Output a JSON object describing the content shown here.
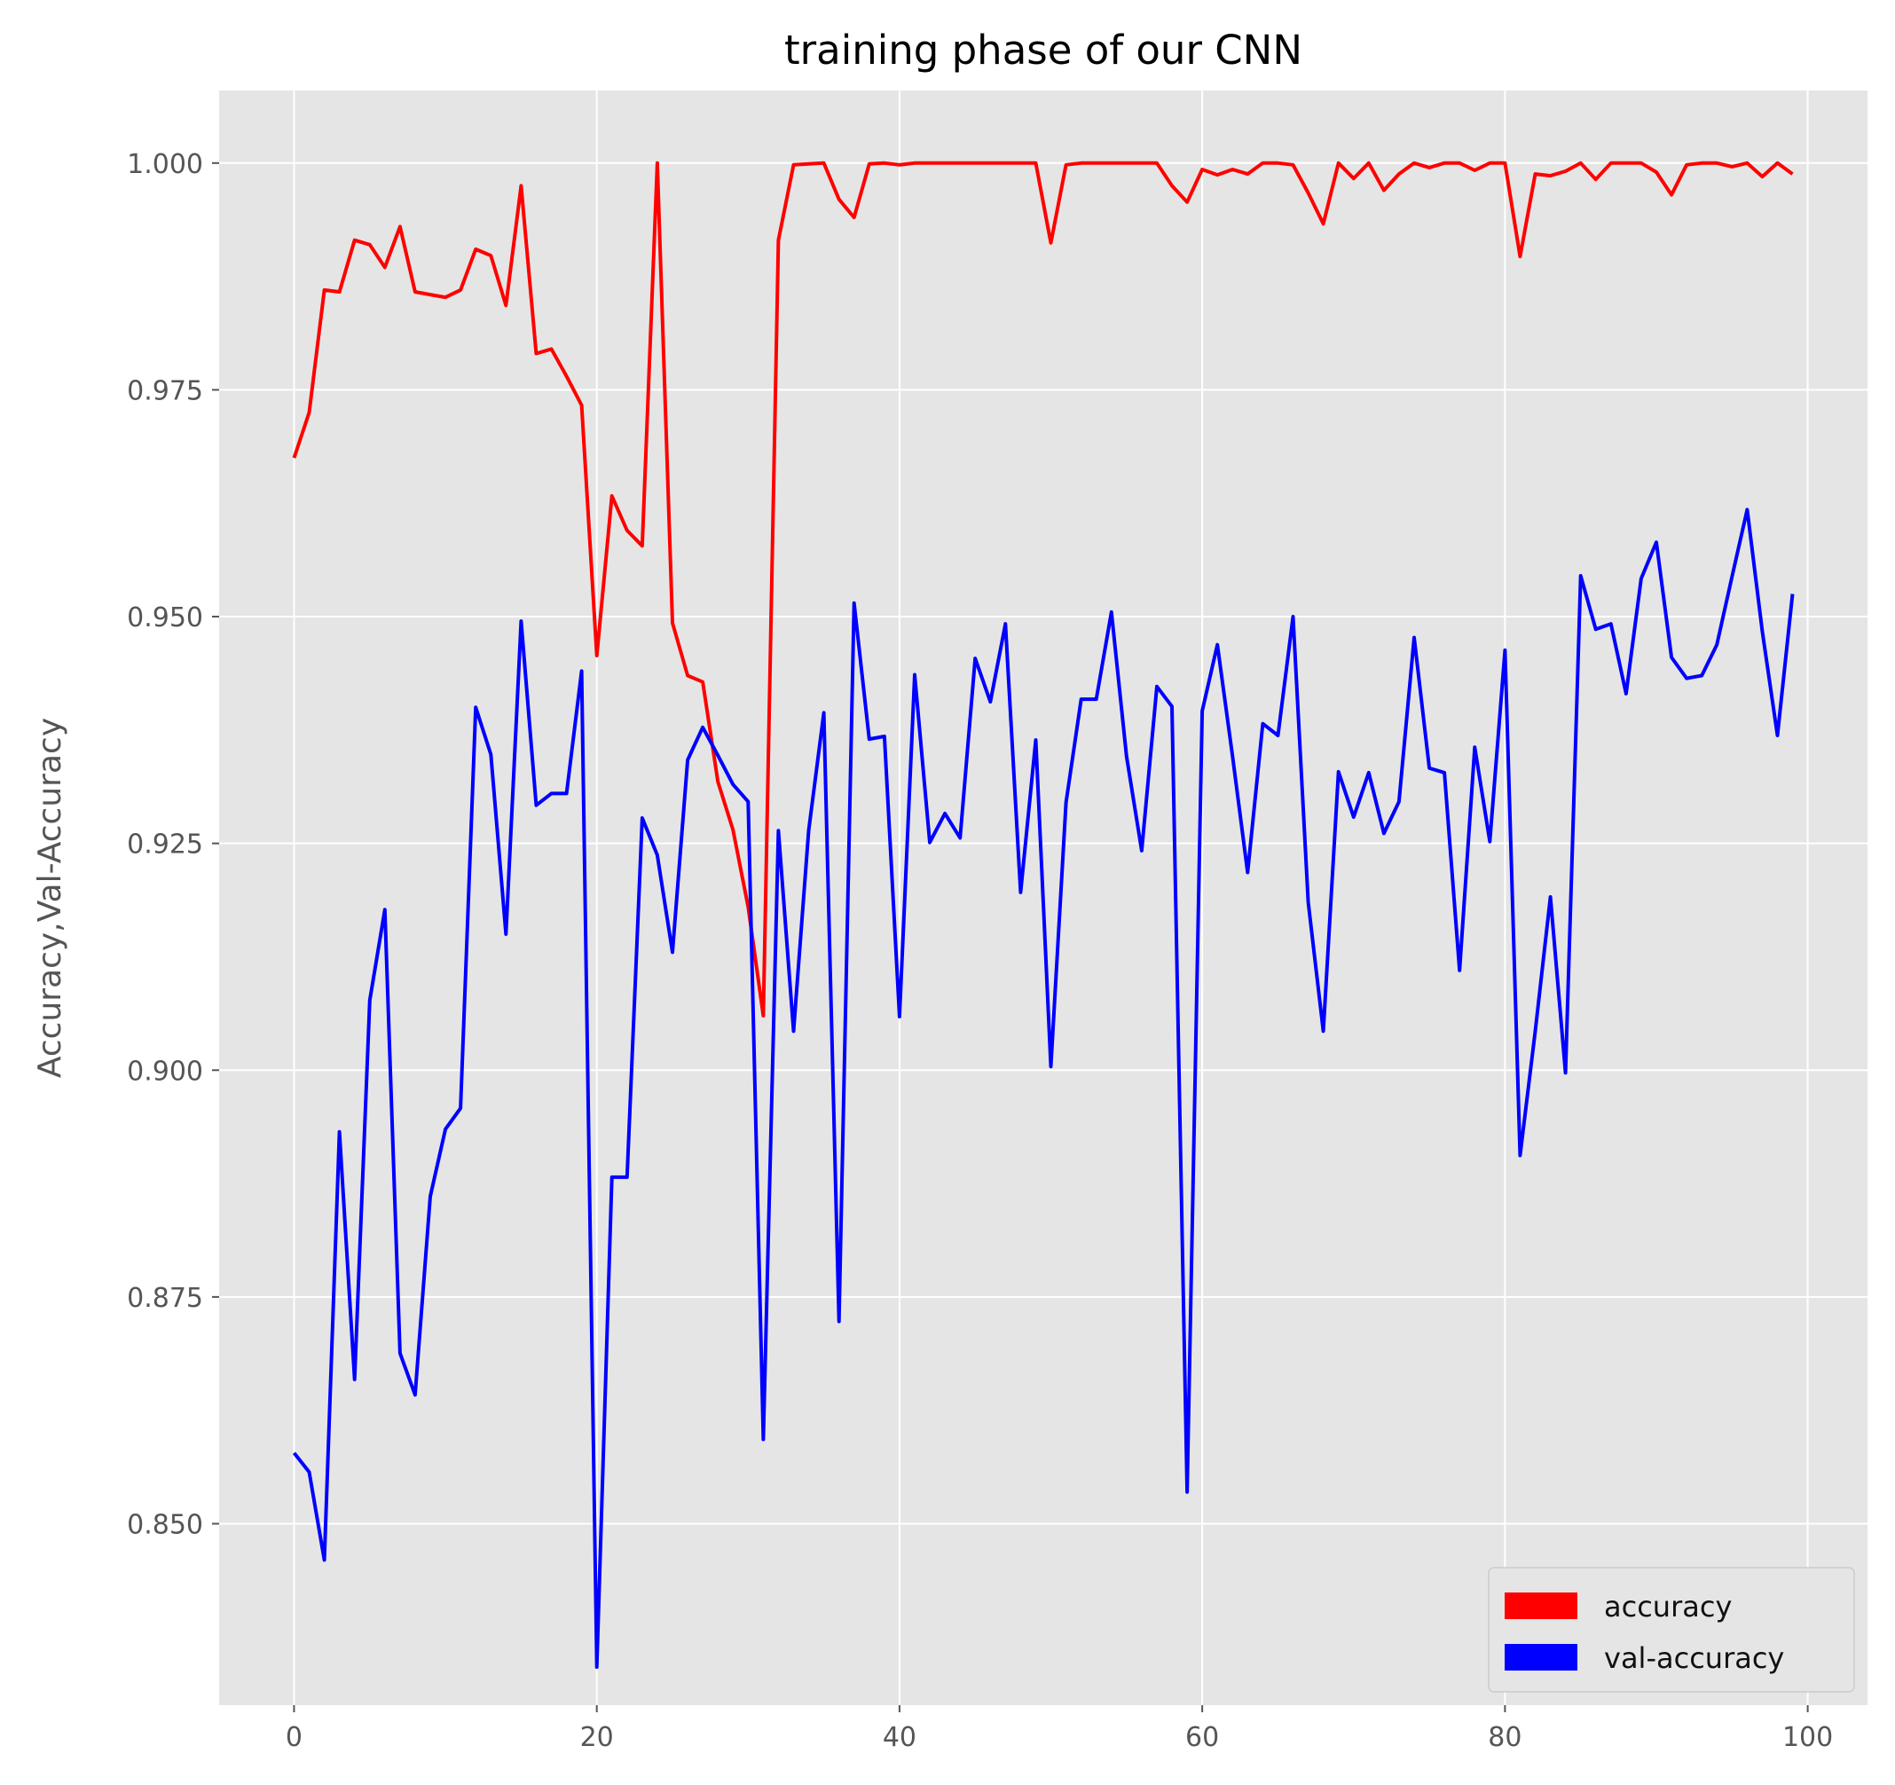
{
  "chart_data": {
    "type": "line",
    "title": "training phase of our CNN",
    "xlabel": "",
    "ylabel": "Accuracy,Val-Accuracy",
    "xlim": [
      -4.95,
      103.95
    ],
    "ylim": [
      0.83,
      1.008
    ],
    "x_ticks": [
      0,
      20,
      40,
      60,
      80,
      100
    ],
    "x_tick_labels": [
      "0",
      "20",
      "40",
      "60",
      "80",
      "100"
    ],
    "y_ticks": [
      0.85,
      0.875,
      0.9,
      0.925,
      0.95,
      0.975,
      1.0
    ],
    "y_tick_labels": [
      "0.850",
      "0.875",
      "0.900",
      "0.925",
      "0.950",
      "0.975",
      "1.000"
    ],
    "grid": true,
    "legend_position": "lower-right",
    "x": [
      0,
      1,
      2,
      3,
      4,
      5,
      6,
      7,
      8,
      9,
      10,
      11,
      12,
      13,
      14,
      15,
      16,
      17,
      18,
      19,
      20,
      21,
      22,
      23,
      24,
      25,
      26,
      27,
      28,
      29,
      30,
      31,
      32,
      33,
      34,
      35,
      36,
      37,
      38,
      39,
      40,
      41,
      42,
      43,
      44,
      45,
      46,
      47,
      48,
      49,
      50,
      51,
      52,
      53,
      54,
      55,
      56,
      57,
      58,
      59,
      60,
      61,
      62,
      63,
      64,
      65,
      66,
      67,
      68,
      69,
      70,
      71,
      72,
      73,
      74,
      75,
      76,
      77,
      78,
      79,
      80,
      81,
      82,
      83,
      84,
      85,
      86,
      87,
      88,
      89,
      90,
      91,
      92,
      93,
      94,
      95,
      96,
      97,
      98,
      99
    ],
    "series": [
      {
        "name": "accuracy",
        "color": "#ff0000",
        "values": [
          0.9675,
          0.9725,
          0.986,
          0.9858,
          0.9915,
          0.991,
          0.9885,
          0.993,
          0.9858,
          0.9855,
          0.9852,
          0.986,
          0.9905,
          0.9898,
          0.9843,
          0.9975,
          0.979,
          0.9795,
          0.9765,
          0.9733,
          0.9457,
          0.9633,
          0.9595,
          0.9578,
          1.0,
          0.9493,
          0.9435,
          0.9428,
          0.9318,
          0.9265,
          0.918,
          0.906,
          0.9915,
          0.9998,
          0.9999,
          1.0,
          0.996,
          0.994,
          0.9999,
          1.0,
          0.9998,
          1.0,
          1.0,
          1.0,
          1.0,
          1.0,
          1.0,
          1.0,
          1.0,
          1.0,
          0.9912,
          0.9998,
          1.0,
          1.0,
          1.0,
          1.0,
          1.0,
          1.0,
          0.9975,
          0.9957,
          0.9993,
          0.9987,
          0.9993,
          0.9988,
          1.0,
          1.0,
          0.9998,
          0.9967,
          0.9933,
          1.0,
          0.9983,
          1.0,
          0.997,
          0.9988,
          1.0,
          0.9995,
          1.0,
          1.0,
          0.9992,
          1.0,
          1.0,
          0.9897,
          0.9988,
          0.9986,
          0.9991,
          1.0,
          0.9982,
          1.0,
          1.0,
          1.0,
          0.999,
          0.9965,
          0.9998,
          1.0,
          1.0,
          0.9996,
          1.0,
          0.9985,
          1.0,
          0.9988
        ]
      },
      {
        "name": "val-accuracy",
        "color": "#0000ff",
        "values": [
          0.8578,
          0.8557,
          0.846,
          0.8932,
          0.8659,
          0.9077,
          0.9177,
          0.8688,
          0.8642,
          0.8861,
          0.8935,
          0.8958,
          0.94,
          0.9348,
          0.915,
          0.9495,
          0.9292,
          0.9305,
          0.9305,
          0.944,
          0.8342,
          0.8882,
          0.8882,
          0.9278,
          0.9237,
          0.913,
          0.9342,
          0.9378,
          0.9347,
          0.9315,
          0.9296,
          0.8593,
          0.9264,
          0.9043,
          0.9264,
          0.9394,
          0.8723,
          0.9515,
          0.9365,
          0.9368,
          0.9059,
          0.9436,
          0.9251,
          0.9283,
          0.9256,
          0.9454,
          0.9406,
          0.9492,
          0.9196,
          0.9364,
          0.9004,
          0.9295,
          0.9409,
          0.9409,
          0.9505,
          0.9346,
          0.9242,
          0.9423,
          0.9401,
          0.8535,
          0.9396,
          0.9469,
          0.9346,
          0.9218,
          0.9382,
          0.9369,
          0.95,
          0.9185,
          0.9043,
          0.9329,
          0.9279,
          0.9328,
          0.9261,
          0.9296,
          0.9477,
          0.9333,
          0.9328,
          0.911,
          0.9356,
          0.9252,
          0.9463,
          0.8906,
          0.9043,
          0.9191,
          0.8997,
          0.9545,
          0.9486,
          0.9492,
          0.9415,
          0.9542,
          0.9582,
          0.9455,
          0.9432,
          0.9435,
          0.9469,
          0.9544,
          0.9618,
          0.9484,
          0.9369,
          0.9525
        ]
      }
    ]
  }
}
